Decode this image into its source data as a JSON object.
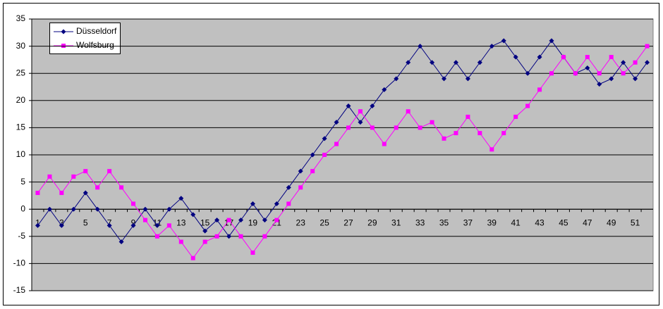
{
  "chart_data": {
    "type": "line",
    "categories": [
      1,
      null,
      3,
      null,
      5,
      null,
      7,
      null,
      9,
      null,
      11,
      null,
      13,
      null,
      15,
      null,
      17,
      null,
      19,
      null,
      21,
      null,
      23,
      null,
      25,
      null,
      27,
      null,
      29,
      null,
      31,
      null,
      33,
      null,
      35,
      null,
      37,
      null,
      39,
      null,
      41,
      null,
      43,
      null,
      45,
      null,
      47,
      null,
      49,
      null,
      51,
      null
    ],
    "series": [
      {
        "name": "Düsseldorf",
        "color": "#000080",
        "marker": "diamond",
        "values": [
          -3,
          0,
          -3,
          0,
          3,
          0,
          -3,
          -6,
          -3,
          0,
          -3,
          0,
          2,
          -1,
          -4,
          -2,
          -5,
          -2,
          1,
          -2,
          1,
          4,
          7,
          10,
          13,
          16,
          19,
          16,
          19,
          22,
          24,
          27,
          30,
          27,
          24,
          27,
          24,
          27,
          30,
          31,
          28,
          25,
          28,
          31,
          28,
          25,
          26,
          23,
          24,
          27,
          24,
          27
        ]
      },
      {
        "name": "Wolfsburg",
        "color": "#ff00ff",
        "marker": "square",
        "values": [
          3,
          6,
          3,
          6,
          7,
          4,
          7,
          4,
          1,
          -2,
          -5,
          -3,
          -6,
          -9,
          -6,
          -5,
          -2,
          -5,
          -8,
          -5,
          -2,
          1,
          4,
          7,
          10,
          12,
          15,
          18,
          15,
          12,
          15,
          18,
          15,
          16,
          13,
          14,
          17,
          14,
          11,
          14,
          17,
          19,
          22,
          25,
          28,
          25,
          28,
          25,
          28,
          25,
          27,
          30
        ]
      }
    ],
    "ylim": [
      -15,
      35
    ],
    "yticks": [
      -15,
      -10,
      -5,
      0,
      5,
      10,
      15,
      20,
      25,
      30,
      35
    ],
    "grid": true,
    "legend": "top-left"
  }
}
